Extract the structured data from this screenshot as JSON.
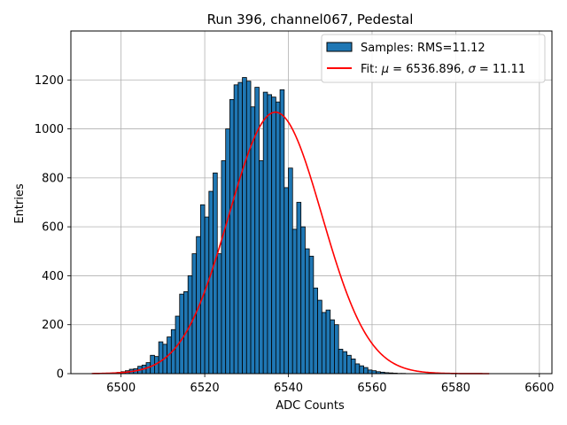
{
  "chart_data": {
    "type": "bar",
    "title": "Run 396, channel067, Pedestal",
    "xlabel": "ADC Counts",
    "ylabel": "Entries",
    "xlim": [
      6488,
      6603
    ],
    "ylim": [
      0,
      1400
    ],
    "xticks": [
      6500,
      6520,
      6540,
      6560,
      6580,
      6600
    ],
    "yticks": [
      0,
      200,
      400,
      600,
      800,
      1000,
      1200
    ],
    "grid": true,
    "legend_position": "top-right",
    "bin_width": 1,
    "bins_start": 6498,
    "histogram_values": [
      3,
      5,
      8,
      12,
      18,
      20,
      30,
      35,
      45,
      75,
      70,
      130,
      120,
      150,
      180,
      235,
      325,
      335,
      400,
      490,
      560,
      690,
      640,
      745,
      820,
      490,
      870,
      1000,
      1120,
      1180,
      1190,
      1210,
      1195,
      1090,
      1170,
      870,
      1150,
      1140,
      1130,
      1110,
      1160,
      760,
      840,
      590,
      700,
      600,
      510,
      480,
      350,
      300,
      250,
      260,
      220,
      200,
      100,
      90,
      75,
      60,
      40,
      32,
      25,
      15,
      12,
      8,
      6,
      4,
      3,
      2,
      1,
      1
    ],
    "fit": {
      "mu": 6536.896,
      "sigma": 11.11,
      "x_range": [
        6493,
        6588
      ]
    },
    "series": [
      {
        "name": "Samples: RMS=11.12",
        "color": "#1f77b4",
        "edge_color": "#000000"
      },
      {
        "name_prefix": "Fit: ",
        "name_mu": "μ",
        "name_mid": " = 6536.896, ",
        "name_sigma": "σ",
        "name_suffix": " = 11.11",
        "color": "#ff0000"
      }
    ]
  }
}
